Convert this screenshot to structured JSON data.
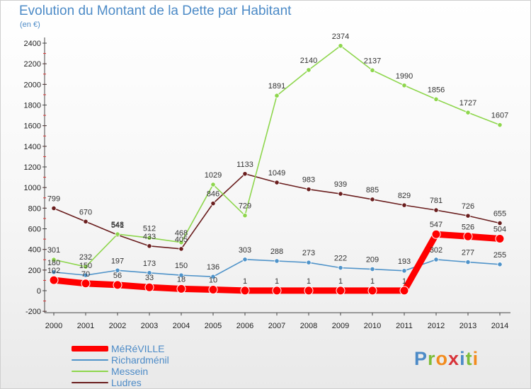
{
  "chart_data": {
    "type": "line",
    "title": "Evolution du Montant de la Dette par Habitant",
    "subtitle": "(en €)",
    "x": [
      "2000",
      "2001",
      "2002",
      "2003",
      "2004",
      "2005",
      "2006",
      "2007",
      "2008",
      "2009",
      "2010",
      "2011",
      "2012",
      "2013",
      "2014"
    ],
    "ylim": [
      -200,
      2400
    ],
    "yticks": [
      -200,
      0,
      200,
      400,
      600,
      800,
      1000,
      1200,
      1400,
      1600,
      1800,
      2000,
      2200,
      2400
    ],
    "grid": false,
    "legend_position": "bottom-left",
    "series": [
      {
        "name": "MéRéVILLE",
        "color": "#ff0000",
        "values": [
          102,
          70,
          56,
          33,
          18,
          10,
          1,
          1,
          1,
          1,
          1,
          1,
          547,
          526,
          504
        ]
      },
      {
        "name": "Richardménil",
        "color": "#4f93c9",
        "values": [
          180,
          150,
          197,
          173,
          150,
          136,
          303,
          288,
          273,
          222,
          209,
          193,
          302,
          277,
          255
        ]
      },
      {
        "name": "Messein",
        "color": "#8ed64d",
        "values": [
          301,
          232,
          548,
          512,
          468,
          1029,
          729,
          1891,
          2140,
          2374,
          2137,
          1990,
          1856,
          1727,
          1607
        ]
      },
      {
        "name": "Ludres",
        "color": "#6a1e1e",
        "values": [
          799,
          670,
          541,
          433,
          405,
          846,
          1133,
          1049,
          983,
          939,
          885,
          829,
          781,
          726,
          655
        ]
      }
    ]
  },
  "brand": {
    "letters": [
      "P",
      "r",
      "o",
      "x",
      "i",
      "t",
      "i"
    ],
    "colors": [
      "#4d8bc7",
      "#7dbd3a",
      "#f28c1e",
      "#d8343a",
      "#4d8bc7",
      "#7dbd3a",
      "#f28c1e"
    ]
  }
}
